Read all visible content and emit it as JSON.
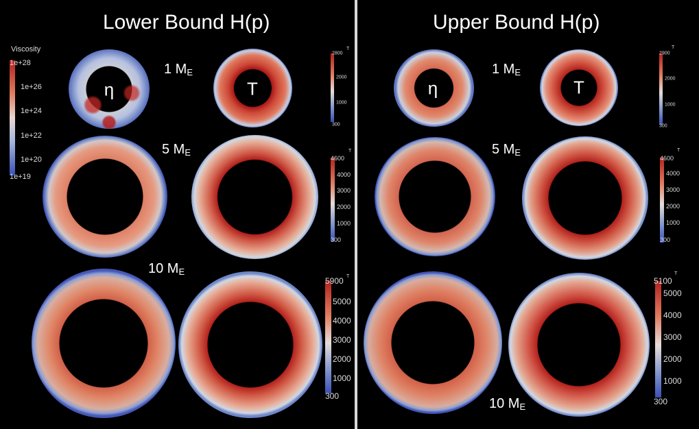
{
  "left": {
    "title": "Lower Bound H(p)",
    "mass_1": "1 M",
    "mass_5": "5 M",
    "mass_10": "10 M",
    "mass_sub": "E",
    "eta": "η",
    "temp": "T"
  },
  "right": {
    "title": "Upper Bound H(p)",
    "mass_1": "1 M",
    "mass_5": "5 M",
    "mass_10": "10 M",
    "mass_sub": "E",
    "eta": "η",
    "temp": "T"
  },
  "viscosity_bar": {
    "label": "Viscosity",
    "ticks": [
      "1e+28",
      "1e+26",
      "1e+24",
      "1e+22",
      "1e+20",
      "1e+19"
    ]
  },
  "colorbars": {
    "left_1": {
      "label": "T",
      "ticks": [
        "2800",
        "2000",
        "1000",
        "300"
      ]
    },
    "left_5": {
      "label": "T",
      "ticks": [
        "4600",
        "4000",
        "3000",
        "2000",
        "1000",
        "300"
      ]
    },
    "left_10": {
      "label": "T",
      "ticks": [
        "5900",
        "5000",
        "4000",
        "3000",
        "2000",
        "1000",
        "300"
      ]
    },
    "right_1": {
      "label": "T",
      "ticks": [
        "2900",
        "2000",
        "1000",
        "300"
      ]
    },
    "right_5": {
      "label": "T",
      "ticks": [
        "4600",
        "4000",
        "3000",
        "2000",
        "1000",
        "300"
      ]
    },
    "right_10": {
      "label": "T",
      "ticks": [
        "5100",
        "5000",
        "4000",
        "3000",
        "2000",
        "1000",
        "300"
      ]
    }
  },
  "colors": {
    "hot": "#b81c1c",
    "warm": "#d9684e",
    "mid": "#dddcdc",
    "cool": "#6b88c8",
    "cold": "#3b4fb5"
  }
}
